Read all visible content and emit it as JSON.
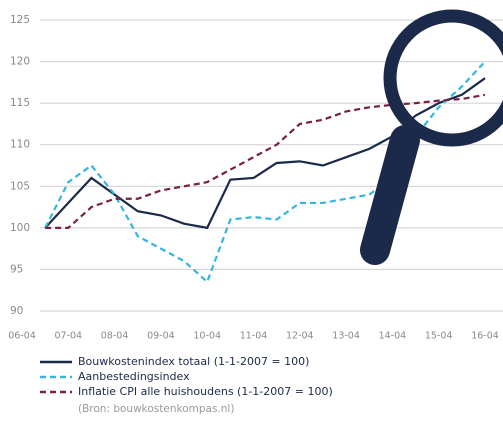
{
  "chart_data": {
    "type": "line",
    "categories": [
      "06-04",
      null,
      "07-04",
      null,
      "08-04",
      null,
      "09-04",
      null,
      "10-04",
      null,
      "11-04",
      null,
      "12-04",
      null,
      "13-04",
      null,
      "14-04",
      null,
      "15-04",
      null,
      "16-04"
    ],
    "series": [
      {
        "name": "Bouwkostenindex totaal (1-1-2007 = 100)",
        "color": "#1b2a4a",
        "dash": false,
        "values": [
          null,
          100,
          103,
          106,
          104,
          102,
          101.5,
          100.5,
          100,
          105.8,
          106,
          107.8,
          108,
          107.5,
          108.5,
          109.5,
          111,
          113.5,
          115,
          116,
          118
        ]
      },
      {
        "name": "Aanbestedingsindex",
        "color": "#35b6e0",
        "dash": true,
        "values": [
          null,
          100,
          105.5,
          107.5,
          104,
          99,
          97.5,
          96,
          93.5,
          101,
          101.3,
          101,
          103,
          103,
          103.5,
          104,
          106,
          111,
          114.5,
          117,
          120
        ]
      },
      {
        "name": "Inflatie CPI alle huishoudens (1-1-2007 = 100)",
        "color": "#7a1f45",
        "dash": true,
        "values": [
          null,
          100,
          100,
          102.5,
          103.5,
          103.5,
          104.5,
          105,
          105.5,
          107,
          108.5,
          110,
          112.5,
          113,
          114,
          114.5,
          114.8,
          115,
          115.3,
          115.5,
          116
        ]
      }
    ],
    "ylim": [
      90,
      125
    ],
    "yticks": [
      90,
      95,
      100,
      105,
      110,
      115,
      120,
      125
    ],
    "grid": true,
    "source": "(Bron: bouwkostenkompas.nl)"
  }
}
